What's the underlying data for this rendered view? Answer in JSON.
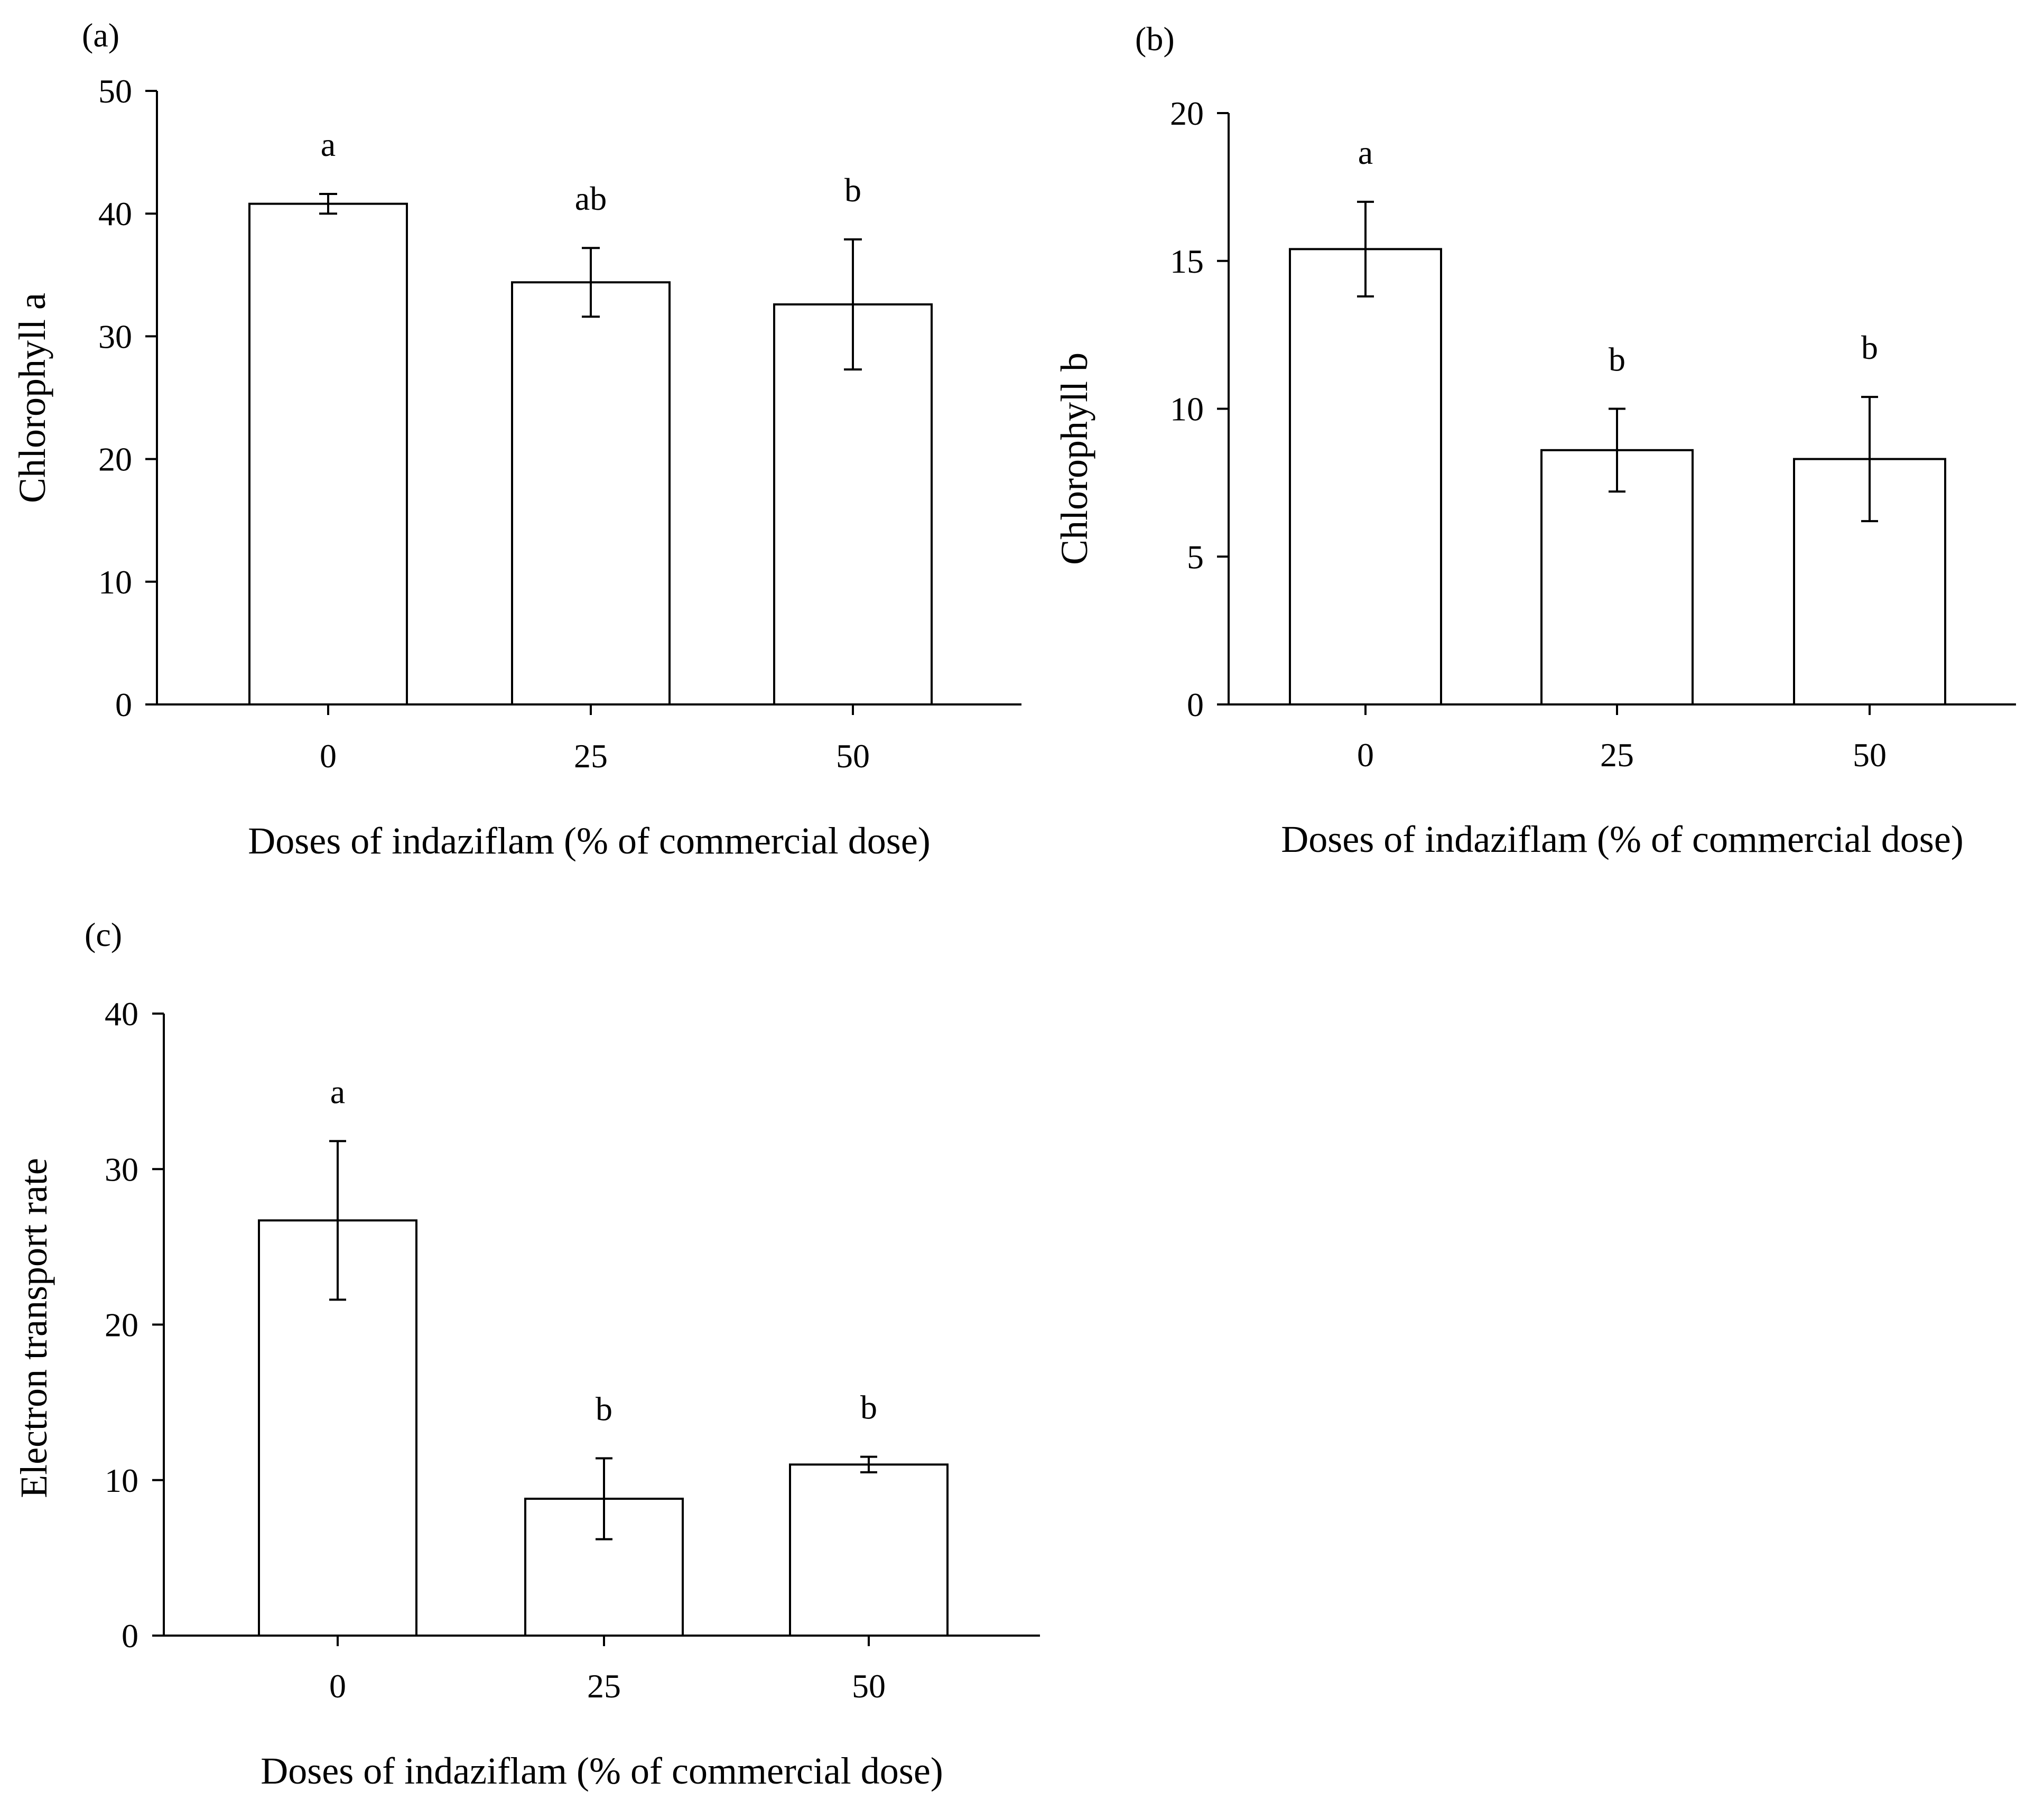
{
  "chart_data": [
    {
      "panel": "(a)",
      "type": "bar",
      "categories": [
        "0",
        "25",
        "50"
      ],
      "values": [
        40.8,
        34.4,
        32.6
      ],
      "errors": [
        0.8,
        2.8,
        5.3
      ],
      "significance": [
        "a",
        "ab",
        "b"
      ],
      "xlabel": "Doses of indaziflam (% of commercial dose)",
      "ylabel": "Chlorophyll  a",
      "ylim": [
        0,
        50
      ],
      "yticks": [
        "0",
        "10",
        "20",
        "30",
        "40",
        "50"
      ]
    },
    {
      "panel": "(b)",
      "type": "bar",
      "categories": [
        "0",
        "25",
        "50"
      ],
      "values": [
        15.4,
        8.6,
        8.3
      ],
      "errors": [
        1.6,
        1.4,
        2.1
      ],
      "significance": [
        "a",
        "b",
        "b"
      ],
      "xlabel": "Doses of indaziflam (% of commercial dose)",
      "ylabel": "Chlorophyll  b",
      "ylim": [
        0,
        20
      ],
      "yticks": [
        "0",
        "5",
        "10",
        "15",
        "20"
      ]
    },
    {
      "panel": "(c)",
      "type": "bar",
      "categories": [
        "0",
        "25",
        "50"
      ],
      "values": [
        26.7,
        8.8,
        11.0
      ],
      "errors": [
        5.1,
        2.6,
        0.5
      ],
      "significance": [
        "a",
        "b",
        "b"
      ],
      "xlabel": "Doses of indaziflam (% of commercial dose)",
      "ylabel": "Electron transport rate",
      "ylim": [
        0,
        40
      ],
      "yticks": [
        "0",
        "10",
        "20",
        "30",
        "40"
      ]
    }
  ]
}
